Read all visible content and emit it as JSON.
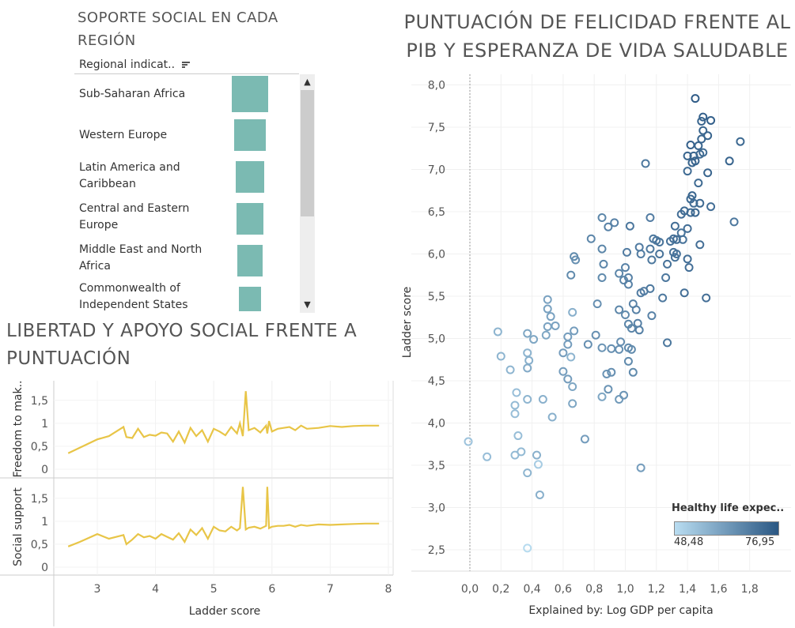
{
  "titles": {
    "support": "SOPORTE SOCIAL EN CADA REGIÓN",
    "scatter": "PUNTUACIÓN DE FELICIDAD FRENTE AL PIB Y ESPERANZA DE VIDA SALUDABLE",
    "freedom": "LIBERTAD Y APOYO SOCIAL FRENTE A PUNTUACIÓN"
  },
  "support_panel": {
    "header": "Regional indicat..",
    "sort_icon": "sort-descending-icon",
    "regions": [
      "Sub-Saharan Africa",
      "Western Europe",
      "Latin America and Caribbean",
      "Central and Eastern Europe",
      "Middle East and North Africa",
      "Commonwealth of Independent States"
    ],
    "bar_color": "#7bbab2"
  },
  "legend": {
    "title": "Healthy life expec..",
    "min": "48,48",
    "max": "76,95",
    "color_low": "#b9ddf1",
    "color_high": "#2a5783"
  },
  "chart_data": [
    {
      "type": "bar",
      "categories": [
        "Sub-Saharan Africa",
        "Western Europe",
        "Latin America and Caribbean",
        "Central and Eastern Europe",
        "Middle East and North Africa",
        "Commonwealth of Independent States"
      ],
      "values": [
        47,
        41,
        38,
        36,
        34,
        30
      ]
    },
    {
      "type": "scatter",
      "title": "PUNTUACIÓN DE FELICIDAD FRENTE AL PIB Y ESPERANZA DE VIDA SALUDABLE",
      "xlabel": "Explained by: Log GDP per capita",
      "ylabel": "Ladder score",
      "xlim": [
        -0.1,
        1.82
      ],
      "ylim": [
        2.3,
        8.1
      ],
      "xticks": [
        "0,0",
        "0,2",
        "0,4",
        "0,6",
        "0,8",
        "1,0",
        "1,2",
        "1,4",
        "1,6",
        "1,8"
      ],
      "yticks": [
        "2,5",
        "3,0",
        "3,5",
        "4,0",
        "4,5",
        "5,0",
        "5,5",
        "6,0",
        "6,5",
        "7,0",
        "7,5",
        "8,0"
      ],
      "color_by": "Healthy life expec..",
      "points": [
        [
          1.45,
          7.84,
          76
        ],
        [
          1.5,
          7.62,
          75
        ],
        [
          1.49,
          7.57,
          74
        ],
        [
          1.55,
          7.58,
          75
        ],
        [
          1.5,
          7.46,
          74
        ],
        [
          1.53,
          7.4,
          74
        ],
        [
          1.49,
          7.36,
          74
        ],
        [
          1.42,
          7.29,
          75
        ],
        [
          1.47,
          7.28,
          74
        ],
        [
          1.74,
          7.33,
          73
        ],
        [
          1.5,
          7.2,
          73
        ],
        [
          1.44,
          7.16,
          74
        ],
        [
          1.4,
          7.16,
          74
        ],
        [
          1.48,
          7.18,
          73
        ],
        [
          1.45,
          7.1,
          74
        ],
        [
          1.43,
          7.08,
          74
        ],
        [
          1.13,
          7.07,
          70
        ],
        [
          1.67,
          7.1,
          74
        ],
        [
          1.4,
          6.98,
          73
        ],
        [
          1.53,
          6.96,
          74
        ],
        [
          1.47,
          6.84,
          73
        ],
        [
          1.43,
          6.69,
          74
        ],
        [
          1.42,
          6.65,
          73
        ],
        [
          1.44,
          6.6,
          72
        ],
        [
          1.48,
          6.6,
          73
        ],
        [
          1.55,
          6.56,
          72
        ],
        [
          1.38,
          6.51,
          73
        ],
        [
          1.42,
          6.49,
          73
        ],
        [
          1.36,
          6.47,
          72
        ],
        [
          1.45,
          6.49,
          74
        ],
        [
          1.16,
          6.43,
          69
        ],
        [
          0.85,
          6.43,
          67
        ],
        [
          1.7,
          6.38,
          70
        ],
        [
          0.93,
          6.37,
          68
        ],
        [
          0.89,
          6.32,
          68
        ],
        [
          1.03,
          6.33,
          70
        ],
        [
          1.32,
          6.33,
          72
        ],
        [
          1.4,
          6.3,
          72
        ],
        [
          1.36,
          6.25,
          71
        ],
        [
          1.31,
          6.18,
          72
        ],
        [
          1.33,
          6.17,
          72
        ],
        [
          1.18,
          6.18,
          70
        ],
        [
          1.2,
          6.16,
          70
        ],
        [
          1.22,
          6.14,
          71
        ],
        [
          1.29,
          6.15,
          71
        ],
        [
          1.37,
          6.17,
          71
        ],
        [
          0.78,
          6.18,
          67
        ],
        [
          1.48,
          6.11,
          72
        ],
        [
          1.09,
          6.08,
          69
        ],
        [
          1.01,
          6.02,
          69
        ],
        [
          1.16,
          6.06,
          70
        ],
        [
          0.85,
          6.06,
          67
        ],
        [
          1.31,
          6.02,
          71
        ],
        [
          1.33,
          6.0,
          71
        ],
        [
          1.1,
          6.0,
          69
        ],
        [
          1.22,
          6.0,
          71
        ],
        [
          1.32,
          5.96,
          71
        ],
        [
          1.4,
          5.94,
          72
        ],
        [
          1.17,
          5.93,
          70
        ],
        [
          0.67,
          5.97,
          66
        ],
        [
          0.68,
          5.93,
          65
        ],
        [
          0.86,
          5.88,
          67
        ],
        [
          1.27,
          5.88,
          71
        ],
        [
          1.41,
          5.84,
          72
        ],
        [
          1.0,
          5.84,
          68
        ],
        [
          0.96,
          5.77,
          67
        ],
        [
          1.02,
          5.72,
          68
        ],
        [
          0.85,
          5.72,
          66
        ],
        [
          0.65,
          5.75,
          66
        ],
        [
          1.26,
          5.72,
          70
        ],
        [
          0.99,
          5.69,
          67
        ],
        [
          1.02,
          5.64,
          68
        ],
        [
          1.12,
          5.56,
          69
        ],
        [
          1.1,
          5.54,
          69
        ],
        [
          1.16,
          5.59,
          70
        ],
        [
          1.38,
          5.54,
          72
        ],
        [
          1.52,
          5.48,
          72
        ],
        [
          1.24,
          5.48,
          70
        ],
        [
          0.5,
          5.46,
          61
        ],
        [
          0.82,
          5.41,
          65
        ],
        [
          1.05,
          5.41,
          68
        ],
        [
          1.07,
          5.34,
          68
        ],
        [
          0.96,
          5.34,
          67
        ],
        [
          0.5,
          5.35,
          61
        ],
        [
          0.66,
          5.31,
          58
        ],
        [
          1.0,
          5.28,
          66
        ],
        [
          1.17,
          5.27,
          68
        ],
        [
          0.52,
          5.26,
          61
        ],
        [
          1.08,
          5.18,
          68
        ],
        [
          1.02,
          5.17,
          67
        ],
        [
          0.55,
          5.15,
          61
        ],
        [
          0.5,
          5.14,
          61
        ],
        [
          1.04,
          5.12,
          67
        ],
        [
          1.09,
          5.1,
          68
        ],
        [
          0.67,
          5.09,
          62
        ],
        [
          0.18,
          5.08,
          57
        ],
        [
          0.37,
          5.06,
          60
        ],
        [
          0.81,
          5.04,
          65
        ],
        [
          0.49,
          5.04,
          60
        ],
        [
          0.63,
          5.02,
          62
        ],
        [
          0.41,
          4.99,
          60
        ],
        [
          0.97,
          4.96,
          65
        ],
        [
          1.27,
          4.95,
          70
        ],
        [
          0.76,
          4.93,
          65
        ],
        [
          0.63,
          4.93,
          62
        ],
        [
          0.91,
          4.88,
          65
        ],
        [
          1.02,
          4.89,
          66
        ],
        [
          0.85,
          4.89,
          64
        ],
        [
          0.96,
          4.87,
          65
        ],
        [
          1.04,
          4.87,
          66
        ],
        [
          0.6,
          4.83,
          62
        ],
        [
          0.37,
          4.83,
          57
        ],
        [
          0.2,
          4.79,
          57
        ],
        [
          0.65,
          4.78,
          57
        ],
        [
          0.38,
          4.74,
          58
        ],
        [
          1.02,
          4.73,
          66
        ],
        [
          0.88,
          4.58,
          64
        ],
        [
          0.6,
          4.61,
          62
        ],
        [
          1.05,
          4.6,
          66
        ],
        [
          0.91,
          4.6,
          65
        ],
        [
          0.37,
          4.65,
          59
        ],
        [
          0.63,
          4.52,
          62
        ],
        [
          0.26,
          4.63,
          57
        ],
        [
          0.66,
          4.43,
          60
        ],
        [
          0.89,
          4.4,
          64
        ],
        [
          0.3,
          4.36,
          55
        ],
        [
          0.85,
          4.31,
          60
        ],
        [
          0.47,
          4.28,
          58
        ],
        [
          0.99,
          4.33,
          64
        ],
        [
          0.37,
          4.28,
          57
        ],
        [
          0.96,
          4.28,
          63
        ],
        [
          0.29,
          4.21,
          56
        ],
        [
          0.66,
          4.23,
          60
        ],
        [
          0.29,
          4.11,
          55
        ],
        [
          0.53,
          4.07,
          58
        ],
        [
          0.31,
          3.85,
          55
        ],
        [
          0.74,
          3.81,
          62
        ],
        [
          -0.01,
          3.78,
          54
        ],
        [
          0.33,
          3.66,
          56
        ],
        [
          0.11,
          3.6,
          55
        ],
        [
          0.29,
          3.62,
          56
        ],
        [
          0.43,
          3.62,
          58
        ],
        [
          0.44,
          3.51,
          52
        ],
        [
          1.1,
          3.47,
          62
        ],
        [
          0.37,
          3.41,
          57
        ],
        [
          0.45,
          3.15,
          58
        ],
        [
          0.37,
          2.52,
          49
        ]
      ]
    },
    {
      "type": "line",
      "title": "LIBERTAD Y APOYO SOCIAL FRENTE A PUNTUACIÓN",
      "xlabel": "Ladder score",
      "xticks": [
        "3",
        "4",
        "5",
        "6",
        "7",
        "8"
      ],
      "xlim": [
        2.3,
        8.1
      ],
      "panels": [
        {
          "ylabel": "Freedom to mak..",
          "yticks": [
            "0",
            "0,5",
            "1",
            "1,5"
          ],
          "ylim": [
            -0.05,
            1.85
          ],
          "x": [
            2.5,
            2.7,
            3.0,
            3.2,
            3.45,
            3.5,
            3.6,
            3.7,
            3.8,
            3.9,
            4.0,
            4.1,
            4.2,
            4.3,
            4.4,
            4.5,
            4.6,
            4.7,
            4.8,
            4.9,
            5.0,
            5.1,
            5.2,
            5.3,
            5.4,
            5.45,
            5.5,
            5.55,
            5.6,
            5.7,
            5.8,
            5.9,
            5.92,
            5.95,
            6.0,
            6.1,
            6.2,
            6.3,
            6.4,
            6.5,
            6.6,
            6.8,
            7.0,
            7.2,
            7.4,
            7.6,
            7.84
          ],
          "values": [
            0.35,
            0.47,
            0.65,
            0.72,
            0.92,
            0.7,
            0.68,
            0.88,
            0.7,
            0.75,
            0.73,
            0.8,
            0.78,
            0.6,
            0.82,
            0.58,
            0.9,
            0.72,
            0.85,
            0.6,
            0.88,
            0.82,
            0.74,
            0.92,
            0.78,
            1.0,
            0.72,
            1.7,
            0.85,
            0.9,
            0.8,
            0.95,
            0.78,
            1.05,
            0.82,
            0.88,
            0.9,
            0.92,
            0.85,
            0.95,
            0.88,
            0.9,
            0.94,
            0.92,
            0.94,
            0.95,
            0.95
          ]
        },
        {
          "ylabel": "Social support",
          "yticks": [
            "0",
            "0,5",
            "1",
            "1,5"
          ],
          "ylim": [
            -0.05,
            1.85
          ],
          "x": [
            2.5,
            2.7,
            3.0,
            3.2,
            3.45,
            3.5,
            3.6,
            3.7,
            3.8,
            3.9,
            4.0,
            4.1,
            4.2,
            4.3,
            4.4,
            4.5,
            4.6,
            4.7,
            4.8,
            4.9,
            5.0,
            5.1,
            5.2,
            5.3,
            5.4,
            5.45,
            5.5,
            5.55,
            5.6,
            5.7,
            5.8,
            5.9,
            5.92,
            5.95,
            6.0,
            6.1,
            6.2,
            6.3,
            6.4,
            6.5,
            6.6,
            6.8,
            7.0,
            7.2,
            7.4,
            7.6,
            7.84
          ],
          "values": [
            0.45,
            0.55,
            0.72,
            0.62,
            0.7,
            0.5,
            0.6,
            0.72,
            0.65,
            0.68,
            0.62,
            0.72,
            0.66,
            0.6,
            0.74,
            0.55,
            0.82,
            0.7,
            0.85,
            0.62,
            0.88,
            0.8,
            0.78,
            0.88,
            0.8,
            0.85,
            1.75,
            0.82,
            0.86,
            0.88,
            0.84,
            0.9,
            1.75,
            0.85,
            0.88,
            0.9,
            0.9,
            0.92,
            0.88,
            0.92,
            0.9,
            0.93,
            0.92,
            0.93,
            0.94,
            0.95,
            0.95
          ]
        }
      ]
    }
  ]
}
